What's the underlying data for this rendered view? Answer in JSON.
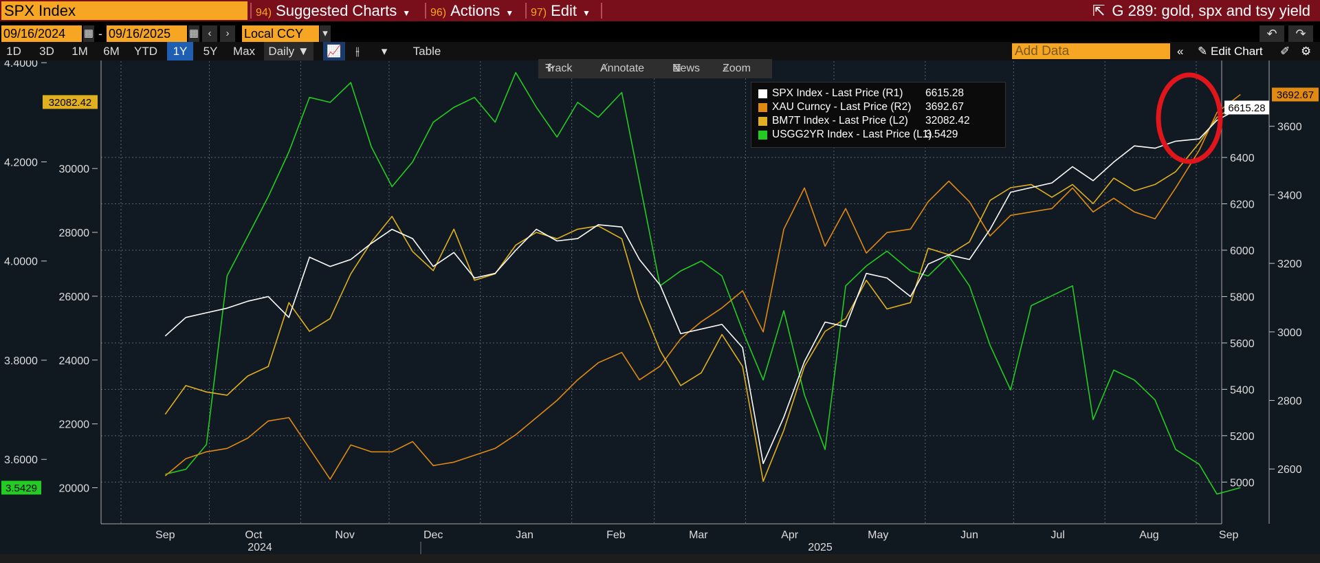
{
  "header": {
    "ticker": "SPX Index",
    "menus": [
      {
        "num": "94)",
        "label": "Suggested Charts"
      },
      {
        "num": "96)",
        "label": "Actions"
      },
      {
        "num": "97)",
        "label": "Edit"
      }
    ],
    "chart_title": "G 289: gold, spx and tsy yield"
  },
  "controls": {
    "start_date": "09/16/2024",
    "end_date": "09/16/2025",
    "currency": "Local CCY",
    "timeframes": [
      "1D",
      "3D",
      "1M",
      "6M",
      "YTD",
      "1Y",
      "5Y",
      "Max"
    ],
    "active_timeframe": "1Y",
    "frequency": "Daily",
    "table_label": "Table",
    "add_data_placeholder": "Add Data",
    "edit_chart_label": "Edit Chart"
  },
  "tools": [
    "Track",
    "Annotate",
    "News",
    "Zoom"
  ],
  "legend": [
    {
      "name": "SPX Index - Last Price (R1)",
      "value": "6615.28",
      "color": "#ffffff"
    },
    {
      "name": "XAU Curncy - Last Price (R2)",
      "value": "3692.67",
      "color": "#e08a14"
    },
    {
      "name": "BM7T Index - Last Price (L2)",
      "value": "32082.42",
      "color": "#e0b020"
    },
    {
      "name": "USGG2YR Index - Last Price (L1)",
      "value": "3.5429",
      "color": "#22cc22"
    }
  ],
  "chart_data": {
    "type": "line",
    "x_months": [
      "Sep",
      "Oct",
      "Nov",
      "Dec",
      "Jan",
      "Feb",
      "Mar",
      "Apr",
      "May",
      "Jun",
      "Jul",
      "Aug",
      "Sep"
    ],
    "x_years": [
      "2024",
      "2025"
    ],
    "axes": {
      "L1": {
        "ticks": [
          "4.4000",
          "4.2000",
          "4.0000",
          "3.8000",
          "3.6000"
        ],
        "range": [
          3.47,
          4.41
        ]
      },
      "L2": {
        "ticks": [
          "30000",
          "28000",
          "26000",
          "24000",
          "22000",
          "20000"
        ],
        "range": [
          18870,
          33470
        ]
      },
      "R1": {
        "ticks": [
          "6400",
          "6200",
          "6000",
          "5800",
          "5600",
          "5400",
          "5200",
          "5000"
        ],
        "range": [
          4820,
          6830
        ]
      },
      "R2": {
        "ticks": [
          "3600",
          "3400",
          "3200",
          "3000",
          "2800",
          "2600"
        ],
        "range": [
          2440,
          3800
        ]
      }
    },
    "last_value_tags": {
      "L1": "3.5429",
      "L2": "32082.42",
      "R1": "6615.28",
      "R2": "3692.67"
    },
    "grid": true,
    "series": [
      {
        "name": "SPX Index - Last Price (R1)",
        "axis": "R1",
        "color": "#ffffff",
        "x": [
          "2024-09-16",
          "2024-09-23",
          "2024-09-30",
          "2024-10-07",
          "2024-10-14",
          "2024-10-21",
          "2024-10-28",
          "2024-11-04",
          "2024-11-11",
          "2024-11-18",
          "2024-11-25",
          "2024-12-02",
          "2024-12-09",
          "2024-12-16",
          "2024-12-23",
          "2024-12-30",
          "2025-01-06",
          "2025-01-13",
          "2025-01-20",
          "2025-01-27",
          "2025-02-03",
          "2025-02-10",
          "2025-02-18",
          "2025-02-24",
          "2025-03-03",
          "2025-03-10",
          "2025-03-17",
          "2025-03-24",
          "2025-03-31",
          "2025-04-07",
          "2025-04-14",
          "2025-04-21",
          "2025-04-28",
          "2025-05-05",
          "2025-05-12",
          "2025-05-19",
          "2025-05-27",
          "2025-06-02",
          "2025-06-09",
          "2025-06-16",
          "2025-06-23",
          "2025-06-30",
          "2025-07-07",
          "2025-07-14",
          "2025-07-21",
          "2025-07-28",
          "2025-08-04",
          "2025-08-11",
          "2025-08-18",
          "2025-08-25",
          "2025-09-02",
          "2025-09-08",
          "2025-09-16"
        ],
        "y": [
          5630,
          5710,
          5730,
          5750,
          5780,
          5800,
          5710,
          5970,
          5930,
          5960,
          6030,
          6090,
          6050,
          5930,
          5990,
          5880,
          5900,
          6000,
          6090,
          6040,
          6050,
          6110,
          6100,
          5960,
          5850,
          5640,
          5660,
          5680,
          5580,
          5080,
          5280,
          5520,
          5690,
          5670,
          5900,
          5880,
          5800,
          5940,
          5980,
          5960,
          6090,
          6250,
          6270,
          6290,
          6360,
          6300,
          6380,
          6450,
          6440,
          6470,
          6480,
          6560,
          6615.28
        ]
      },
      {
        "name": "XAU Curncy - Last Price (R2)",
        "axis": "R2",
        "color": "#e08a14",
        "x": [
          "2024-09-16",
          "2024-09-23",
          "2024-09-30",
          "2024-10-07",
          "2024-10-14",
          "2024-10-21",
          "2024-10-28",
          "2024-11-04",
          "2024-11-11",
          "2024-11-18",
          "2024-11-25",
          "2024-12-02",
          "2024-12-09",
          "2024-12-16",
          "2024-12-23",
          "2024-12-30",
          "2025-01-06",
          "2025-01-13",
          "2025-01-20",
          "2025-01-27",
          "2025-02-03",
          "2025-02-10",
          "2025-02-18",
          "2025-02-24",
          "2025-03-03",
          "2025-03-10",
          "2025-03-17",
          "2025-03-24",
          "2025-03-31",
          "2025-04-07",
          "2025-04-14",
          "2025-04-21",
          "2025-04-28",
          "2025-05-05",
          "2025-05-12",
          "2025-05-19",
          "2025-05-27",
          "2025-06-02",
          "2025-06-09",
          "2025-06-16",
          "2025-06-23",
          "2025-06-30",
          "2025-07-07",
          "2025-07-14",
          "2025-07-21",
          "2025-07-28",
          "2025-08-04",
          "2025-08-11",
          "2025-08-18",
          "2025-08-25",
          "2025-09-02",
          "2025-09-08",
          "2025-09-16"
        ],
        "y": [
          2580,
          2630,
          2650,
          2660,
          2690,
          2740,
          2750,
          2660,
          2570,
          2670,
          2650,
          2650,
          2680,
          2610,
          2620,
          2640,
          2660,
          2700,
          2750,
          2800,
          2860,
          2910,
          2940,
          2860,
          2900,
          2980,
          3030,
          3070,
          3120,
          3000,
          3300,
          3420,
          3250,
          3360,
          3230,
          3290,
          3300,
          3380,
          3440,
          3380,
          3280,
          3340,
          3350,
          3360,
          3420,
          3350,
          3390,
          3350,
          3330,
          3420,
          3530,
          3640,
          3692.67
        ]
      },
      {
        "name": "BM7T Index - Last Price (L2)",
        "axis": "L2",
        "color": "#e0b020",
        "x": [
          "2024-09-16",
          "2024-09-23",
          "2024-09-30",
          "2024-10-07",
          "2024-10-14",
          "2024-10-21",
          "2024-10-28",
          "2024-11-04",
          "2024-11-11",
          "2024-11-18",
          "2024-11-25",
          "2024-12-02",
          "2024-12-09",
          "2024-12-16",
          "2024-12-23",
          "2024-12-30",
          "2025-01-06",
          "2025-01-13",
          "2025-01-20",
          "2025-01-27",
          "2025-02-03",
          "2025-02-10",
          "2025-02-18",
          "2025-02-24",
          "2025-03-03",
          "2025-03-10",
          "2025-03-17",
          "2025-03-24",
          "2025-03-31",
          "2025-04-07",
          "2025-04-14",
          "2025-04-21",
          "2025-04-28",
          "2025-05-05",
          "2025-05-12",
          "2025-05-19",
          "2025-05-27",
          "2025-06-02",
          "2025-06-09",
          "2025-06-16",
          "2025-06-23",
          "2025-06-30",
          "2025-07-07",
          "2025-07-14",
          "2025-07-21",
          "2025-07-28",
          "2025-08-04",
          "2025-08-11",
          "2025-08-18",
          "2025-08-25",
          "2025-09-02",
          "2025-09-08",
          "2025-09-16"
        ],
        "y": [
          22300,
          23200,
          23000,
          22900,
          23500,
          23800,
          25800,
          24900,
          25300,
          26700,
          27700,
          28500,
          27400,
          26800,
          28100,
          26500,
          26700,
          27600,
          28000,
          27800,
          28100,
          28200,
          27800,
          25900,
          24300,
          23200,
          23600,
          24800,
          23800,
          20200,
          21800,
          23800,
          24900,
          25300,
          26500,
          25600,
          25800,
          27500,
          27300,
          27700,
          29000,
          29400,
          29500,
          29100,
          29500,
          28900,
          29700,
          29300,
          29500,
          29900,
          30800,
          31600,
          32082.42
        ]
      },
      {
        "name": "USGG2YR Index - Last Price (L1)",
        "axis": "L1",
        "color": "#22cc22",
        "x": [
          "2024-09-16",
          "2024-09-23",
          "2024-09-30",
          "2024-10-07",
          "2024-10-14",
          "2024-10-21",
          "2024-10-28",
          "2024-11-04",
          "2024-11-11",
          "2024-11-18",
          "2024-11-25",
          "2024-12-02",
          "2024-12-09",
          "2024-12-16",
          "2024-12-23",
          "2024-12-30",
          "2025-01-06",
          "2025-01-13",
          "2025-01-20",
          "2025-01-27",
          "2025-02-03",
          "2025-02-10",
          "2025-02-18",
          "2025-02-24",
          "2025-03-03",
          "2025-03-10",
          "2025-03-17",
          "2025-03-24",
          "2025-03-31",
          "2025-04-07",
          "2025-04-14",
          "2025-04-21",
          "2025-04-28",
          "2025-05-05",
          "2025-05-12",
          "2025-05-19",
          "2025-05-27",
          "2025-06-02",
          "2025-06-09",
          "2025-06-16",
          "2025-06-23",
          "2025-06-30",
          "2025-07-07",
          "2025-07-14",
          "2025-07-21",
          "2025-07-28",
          "2025-08-04",
          "2025-08-11",
          "2025-08-18",
          "2025-08-25",
          "2025-09-02",
          "2025-09-08",
          "2025-09-16"
        ],
        "y": [
          3.57,
          3.58,
          3.63,
          3.97,
          4.05,
          4.13,
          4.22,
          4.33,
          4.32,
          4.36,
          4.23,
          4.15,
          4.2,
          4.28,
          4.31,
          4.33,
          4.28,
          4.38,
          4.31,
          4.25,
          4.32,
          4.29,
          4.34,
          4.16,
          3.95,
          3.98,
          4.0,
          3.97,
          3.86,
          3.76,
          3.9,
          3.73,
          3.62,
          3.95,
          3.99,
          4.02,
          3.98,
          3.97,
          4.01,
          3.95,
          3.83,
          3.74,
          3.91,
          3.93,
          3.95,
          3.68,
          3.78,
          3.76,
          3.72,
          3.62,
          3.59,
          3.53,
          3.5429
        ]
      }
    ]
  }
}
